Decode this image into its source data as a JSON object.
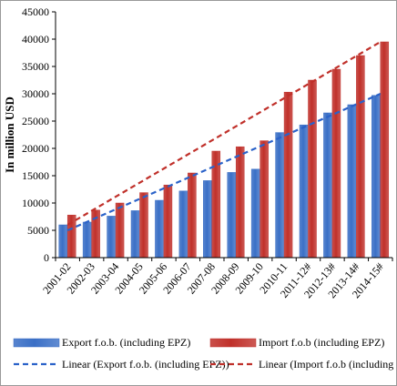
{
  "chart_data": {
    "type": "bar",
    "categories": [
      "2001-02",
      "2002-03",
      "2003-04",
      "2004-05",
      "2005-06",
      "2006-07",
      "2007-08",
      "2008-09",
      "2009-10",
      "2010-11",
      "2011-12#",
      "2012-13#",
      "2013-14#",
      "2014-15#"
    ],
    "series": [
      {
        "name": "Export f.o.b. (including EPZ)",
        "color": "#3a6fc6",
        "values": [
          6000,
          6500,
          7600,
          8600,
          10500,
          12200,
          14100,
          15600,
          16200,
          22900,
          24300,
          26500,
          28000,
          29700
        ]
      },
      {
        "name": "Import f.o.b (including EPZ)",
        "color": "#c0302a",
        "values": [
          7800,
          8700,
          10000,
          11900,
          13300,
          15500,
          19500,
          20300,
          21400,
          30300,
          32500,
          34500,
          37000,
          39500
        ]
      }
    ],
    "trendlines": [
      {
        "name": "Linear (Export f.o.b. (including EPZ))",
        "color": "#2a62c9",
        "dash": "dashed",
        "start": 5000,
        "end": 30000
      },
      {
        "name": "Linear (Import f.o.b (including EPZ))",
        "color": "#c0302a",
        "dash": "dashed",
        "start": 6000,
        "end": 39500
      }
    ],
    "ylabel": "In million USD",
    "ylim": [
      0,
      45000
    ],
    "yticks": [
      0,
      5000,
      10000,
      15000,
      20000,
      25000,
      30000,
      35000,
      40000,
      45000
    ],
    "grid": false,
    "legend_placement": "bottom"
  }
}
